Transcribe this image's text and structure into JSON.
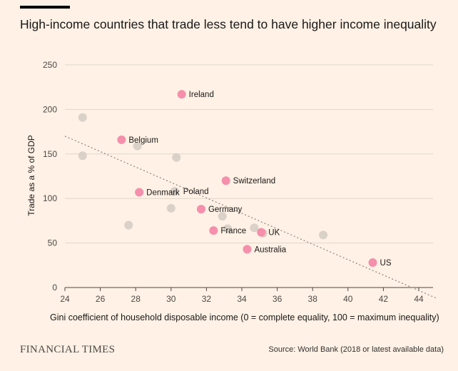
{
  "brand": "FINANCIAL TIMES",
  "source": "Source: World Bank (2018 or latest available data)",
  "colors": {
    "background": "#fff1e5",
    "highlight": "#f58fab",
    "other": "#d6cdc4",
    "grid": "#e0d6cc",
    "trend": "#8a847e"
  },
  "chart_data": {
    "type": "scatter",
    "title": "High-income countries that trade less tend to have higher income inequality",
    "xlabel": "Gini coefficient of household disposable income (0 = complete equality, 100 = maximum inequality)",
    "ylabel": "Trade as a % of GDP",
    "xlim": [
      24,
      45
    ],
    "ylim": [
      0,
      250
    ],
    "x_ticks": [
      24,
      26,
      28,
      30,
      32,
      34,
      36,
      38,
      40,
      42,
      44
    ],
    "y_ticks": [
      0,
      50,
      100,
      150,
      200,
      250
    ],
    "grid": "horizontal",
    "trendline": {
      "x": [
        24,
        45
      ],
      "y": [
        170,
        -12
      ]
    },
    "highlighted": [
      {
        "label": "Ireland",
        "x": 30.6,
        "y": 217
      },
      {
        "label": "Belgium",
        "x": 27.2,
        "y": 166
      },
      {
        "label": "Switzerland",
        "x": 33.1,
        "y": 120
      },
      {
        "label": "Denmark",
        "x": 28.2,
        "y": 107
      },
      {
        "label": "Germany",
        "x": 31.7,
        "y": 88
      },
      {
        "label": "France",
        "x": 32.4,
        "y": 64
      },
      {
        "label": "UK",
        "x": 35.1,
        "y": 62
      },
      {
        "label": "Australia",
        "x": 34.3,
        "y": 43
      },
      {
        "label": "US",
        "x": 41.4,
        "y": 28
      }
    ],
    "labelled_other": [
      {
        "label": "Poland",
        "x": 30.2,
        "y": 108
      }
    ],
    "others": [
      {
        "x": 25.0,
        "y": 191
      },
      {
        "x": 25.0,
        "y": 148
      },
      {
        "x": 28.1,
        "y": 159
      },
      {
        "x": 30.3,
        "y": 146
      },
      {
        "x": 27.6,
        "y": 70
      },
      {
        "x": 30.0,
        "y": 89
      },
      {
        "x": 32.9,
        "y": 80
      },
      {
        "x": 33.2,
        "y": 66
      },
      {
        "x": 34.7,
        "y": 67
      },
      {
        "x": 35.2,
        "y": 61
      },
      {
        "x": 38.6,
        "y": 59
      }
    ]
  }
}
